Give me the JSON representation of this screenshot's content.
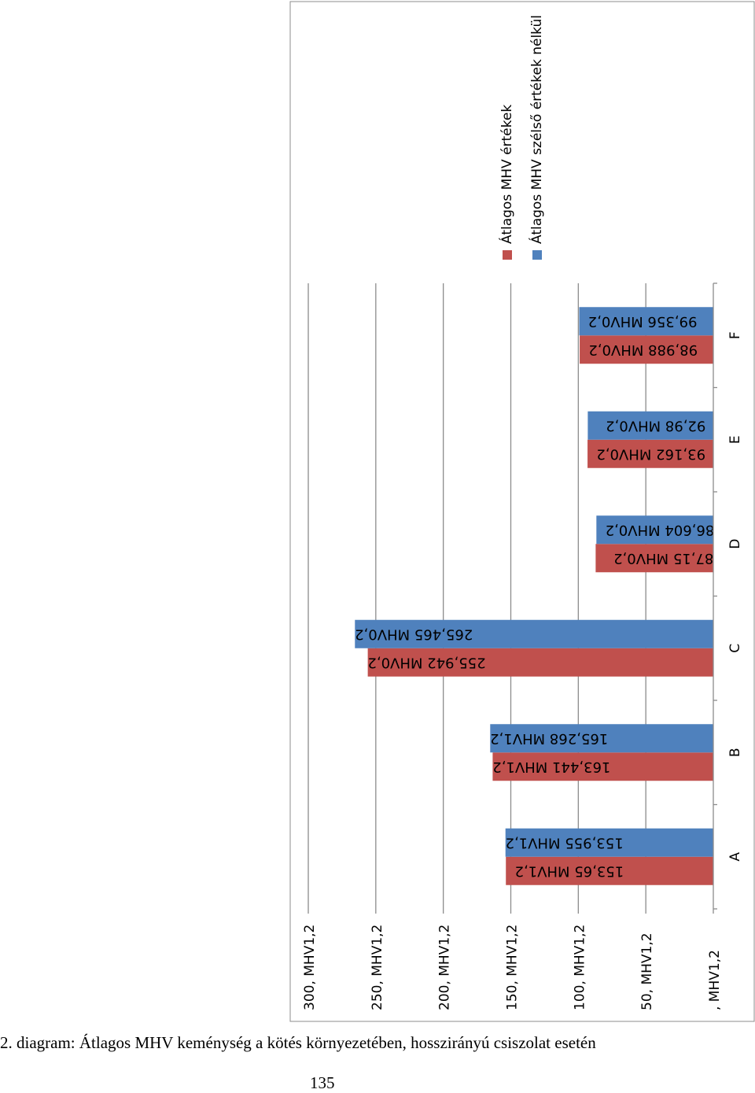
{
  "caption": "2. diagram: Átlagos MHV keménység a kötés környezetében, hosszirányú csiszolat esetén",
  "page_number": "135",
  "chart_data": {
    "type": "bar",
    "orientation": "rotated",
    "categories": [
      "A",
      "B",
      "C",
      "D",
      "E",
      "F"
    ],
    "series": [
      {
        "name": "Átlagos MHV értékek",
        "color": "#c0504d",
        "values": [
          153.65,
          163.441,
          255.942,
          87.15,
          93.162,
          98.988
        ],
        "labels": [
          "153,65 MHV1,2",
          "163,441 MHV1,2",
          "255,942 MHV0,2",
          "87,15 MHV0,2",
          "93,162 MHV0,2",
          "98,988 MHV0,2"
        ]
      },
      {
        "name": "Átlagos MHV szélső értékek nélkül",
        "color": "#4f81bd",
        "values": [
          153.955,
          165.268,
          265.465,
          86.604,
          92.98,
          99.356
        ],
        "labels": [
          "153,955 MHV1,2",
          "165,268 MHV1,2",
          "265,465 MHV0,2",
          "86,604 MHV0,2",
          "92,98 MHV0,2",
          "99,356 MHV0,2"
        ]
      }
    ],
    "ylim": [
      0,
      300
    ],
    "yticks": [
      0,
      50,
      100,
      150,
      200,
      250,
      300
    ],
    "ytick_labels": [
      ", MHV1,2",
      "50, MHV1,2",
      "100, MHV1,2",
      "150, MHV1,2",
      "200, MHV1,2",
      "250, MHV1,2",
      "300, MHV1,2"
    ],
    "grid": true,
    "legend_position": "top"
  }
}
